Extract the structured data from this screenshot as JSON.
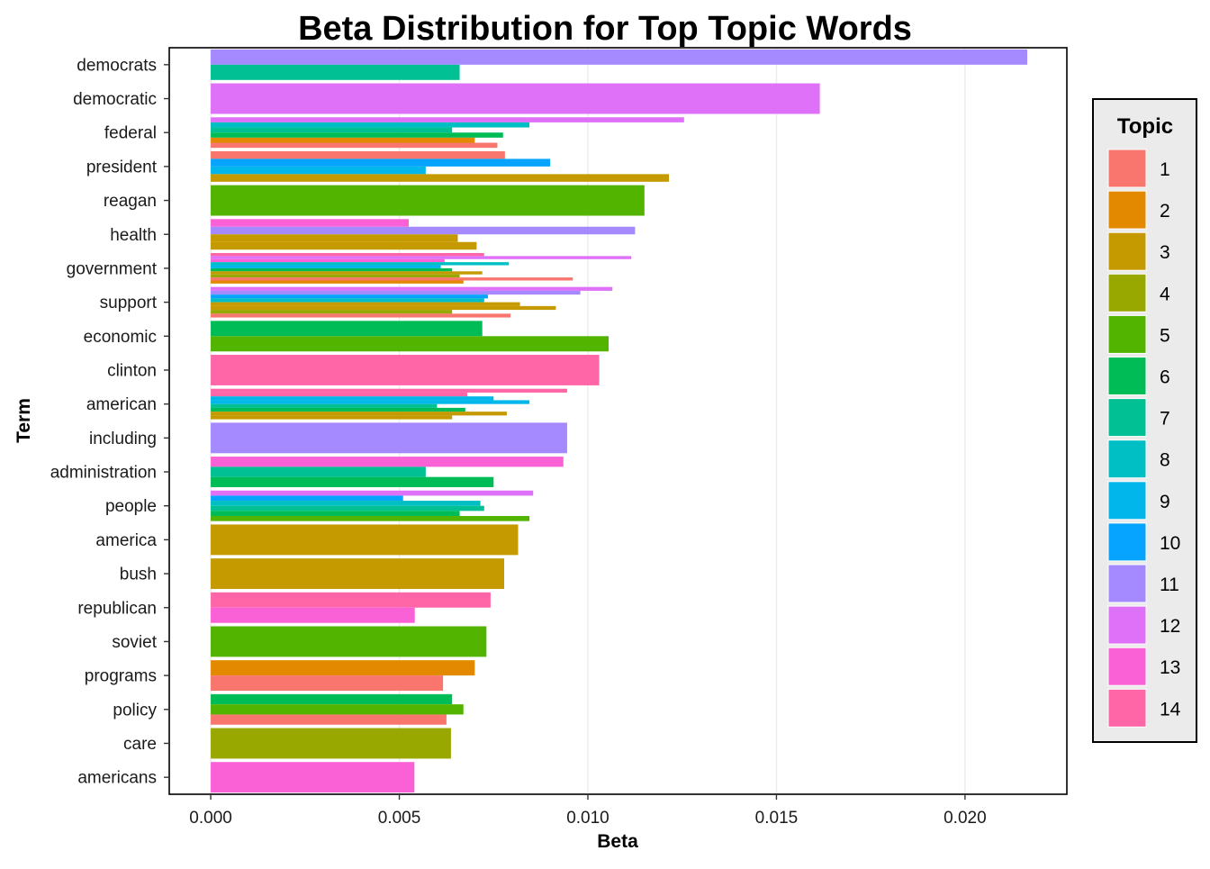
{
  "chart_data": {
    "type": "bar",
    "orientation": "horizontal",
    "title": "Beta Distribution for Top Topic Words",
    "xlabel": "Beta",
    "ylabel": "Term",
    "xlim": [
      -0.0011,
      0.0227
    ],
    "x_ticks": [
      0.0,
      0.005,
      0.01,
      0.015,
      0.02
    ],
    "x_tick_labels": [
      "0.000",
      "0.005",
      "0.010",
      "0.015",
      "0.020"
    ],
    "grid": "vertical major lines only",
    "legend": {
      "title": "Topic",
      "placement": "right",
      "entries": [
        "1",
        "2",
        "3",
        "4",
        "5",
        "6",
        "7",
        "8",
        "9",
        "10",
        "11",
        "12",
        "13",
        "14"
      ],
      "colors": [
        "#F8766D",
        "#E38900",
        "#C49A00",
        "#99A800",
        "#53B400",
        "#00BC56",
        "#00C094",
        "#00BFC4",
        "#00B6EB",
        "#06A4FF",
        "#A58AFF",
        "#DF70F8",
        "#FB61D7",
        "#FF66A8"
      ]
    },
    "terms": [
      {
        "term": "democrats",
        "bars": [
          {
            "topic": 11,
            "beta": 0.02165
          },
          {
            "topic": 7,
            "beta": 0.0066
          }
        ]
      },
      {
        "term": "democratic",
        "bars": [
          {
            "topic": 12,
            "beta": 0.01615
          }
        ]
      },
      {
        "term": "federal",
        "bars": [
          {
            "topic": 12,
            "beta": 0.01255
          },
          {
            "topic": 8,
            "beta": 0.00845
          },
          {
            "topic": 7,
            "beta": 0.0064
          },
          {
            "topic": 6,
            "beta": 0.00775
          },
          {
            "topic": 2,
            "beta": 0.007
          },
          {
            "topic": 1,
            "beta": 0.0076
          }
        ]
      },
      {
        "term": "president",
        "bars": [
          {
            "topic": 1,
            "beta": 0.0078
          },
          {
            "topic": 10,
            "beta": 0.009
          },
          {
            "topic": 9,
            "beta": 0.0057
          },
          {
            "topic": 3,
            "beta": 0.01215
          }
        ]
      },
      {
        "term": "reagan",
        "bars": [
          {
            "topic": 5,
            "beta": 0.0115
          }
        ]
      },
      {
        "term": "health",
        "bars": [
          {
            "topic": 13,
            "beta": 0.00525
          },
          {
            "topic": 11,
            "beta": 0.01125
          },
          {
            "topic": 3,
            "beta": 0.00655
          },
          {
            "topic": 3,
            "beta": 0.00705
          }
        ]
      },
      {
        "term": "government",
        "bars": [
          {
            "topic": 14,
            "beta": 0.00725
          },
          {
            "topic": 12,
            "beta": 0.01115
          },
          {
            "topic": 13,
            "beta": 0.0062
          },
          {
            "topic": 8,
            "beta": 0.0079
          },
          {
            "topic": 9,
            "beta": 0.0061
          },
          {
            "topic": 6,
            "beta": 0.0064
          },
          {
            "topic": 3,
            "beta": 0.0072
          },
          {
            "topic": 4,
            "beta": 0.0066
          },
          {
            "topic": 1,
            "beta": 0.0096
          },
          {
            "topic": 2,
            "beta": 0.0067
          }
        ]
      },
      {
        "term": "support",
        "bars": [
          {
            "topic": 12,
            "beta": 0.01065
          },
          {
            "topic": 11,
            "beta": 0.0098
          },
          {
            "topic": 10,
            "beta": 0.00735
          },
          {
            "topic": 8,
            "beta": 0.00725
          },
          {
            "topic": 3,
            "beta": 0.0082
          },
          {
            "topic": 3,
            "beta": 0.00915
          },
          {
            "topic": 4,
            "beta": 0.0064
          },
          {
            "topic": 1,
            "beta": 0.00795
          }
        ]
      },
      {
        "term": "economic",
        "bars": [
          {
            "topic": 6,
            "beta": 0.0072
          },
          {
            "topic": 5,
            "beta": 0.01055
          }
        ]
      },
      {
        "term": "clinton",
        "bars": [
          {
            "topic": 14,
            "beta": 0.0103
          }
        ]
      },
      {
        "term": "american",
        "bars": [
          {
            "topic": 14,
            "beta": 0.00945
          },
          {
            "topic": 14,
            "beta": 0.0068
          },
          {
            "topic": 9,
            "beta": 0.0075
          },
          {
            "topic": 9,
            "beta": 0.00845
          },
          {
            "topic": 7,
            "beta": 0.006
          },
          {
            "topic": 6,
            "beta": 0.00675
          },
          {
            "topic": 3,
            "beta": 0.00785
          },
          {
            "topic": 3,
            "beta": 0.0064
          }
        ]
      },
      {
        "term": "including",
        "bars": [
          {
            "topic": 11,
            "beta": 0.00945
          }
        ]
      },
      {
        "term": "administration",
        "bars": [
          {
            "topic": 13,
            "beta": 0.00935
          },
          {
            "topic": 7,
            "beta": 0.0057
          },
          {
            "topic": 6,
            "beta": 0.0075
          }
        ]
      },
      {
        "term": "people",
        "bars": [
          {
            "topic": 12,
            "beta": 0.00855
          },
          {
            "topic": 10,
            "beta": 0.0051
          },
          {
            "topic": 8,
            "beta": 0.00715
          },
          {
            "topic": 7,
            "beta": 0.00725
          },
          {
            "topic": 6,
            "beta": 0.0066
          },
          {
            "topic": 5,
            "beta": 0.00845
          }
        ]
      },
      {
        "term": "america",
        "bars": [
          {
            "topic": 3,
            "beta": 0.00815
          }
        ]
      },
      {
        "term": "bush",
        "bars": [
          {
            "topic": 3,
            "beta": 0.00778
          }
        ]
      },
      {
        "term": "republican",
        "bars": [
          {
            "topic": 14,
            "beta": 0.00742
          },
          {
            "topic": 13,
            "beta": 0.00541
          }
        ]
      },
      {
        "term": "soviet",
        "bars": [
          {
            "topic": 5,
            "beta": 0.00731
          }
        ]
      },
      {
        "term": "programs",
        "bars": [
          {
            "topic": 2,
            "beta": 0.007
          },
          {
            "topic": 1,
            "beta": 0.00616
          }
        ]
      },
      {
        "term": "policy",
        "bars": [
          {
            "topic": 6,
            "beta": 0.0064
          },
          {
            "topic": 5,
            "beta": 0.0067
          },
          {
            "topic": 1,
            "beta": 0.00625
          }
        ]
      },
      {
        "term": "care",
        "bars": [
          {
            "topic": 4,
            "beta": 0.00637
          }
        ]
      },
      {
        "term": "americans",
        "bars": [
          {
            "topic": 13,
            "beta": 0.0054
          }
        ]
      }
    ]
  }
}
